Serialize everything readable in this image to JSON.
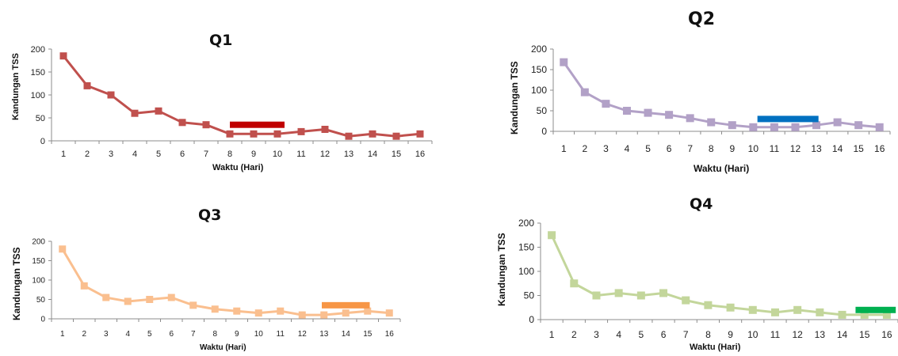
{
  "chart_data": [
    {
      "type": "line",
      "title": "Q1",
      "xlabel": "Waktu (Hari)",
      "ylabel": "Kandungan TSS",
      "categories": [
        "1",
        "2",
        "3",
        "4",
        "5",
        "6",
        "7",
        "8",
        "9",
        "10",
        "11",
        "12",
        "13",
        "14",
        "15",
        "16"
      ],
      "yticks": [
        "0",
        "50",
        "100",
        "150",
        "200"
      ],
      "ylim": [
        0,
        200
      ],
      "series": [
        {
          "values": [
            185,
            120,
            100,
            60,
            65,
            40,
            35,
            15,
            15,
            15,
            20,
            25,
            10,
            15,
            10,
            15
          ],
          "color": "#c0504d"
        }
      ],
      "marker_bar": {
        "from": 8,
        "to": 10.3,
        "value": 35,
        "color": "#c00000"
      },
      "grid": false
    },
    {
      "type": "line",
      "title": "Q2",
      "xlabel": "Waktu (Hari)",
      "ylabel": "Kandungan TSS",
      "categories": [
        "1",
        "2",
        "3",
        "4",
        "5",
        "6",
        "7",
        "8",
        "9",
        "10",
        "11",
        "12",
        "13",
        "14",
        "15",
        "16"
      ],
      "yticks": [
        "0",
        "50",
        "100",
        "150",
        "200"
      ],
      "ylim": [
        0,
        200
      ],
      "series": [
        {
          "values": [
            168,
            95,
            67,
            50,
            45,
            40,
            32,
            22,
            15,
            10,
            10,
            10,
            15,
            22,
            15,
            10
          ],
          "color": "#b2a1c7"
        }
      ],
      "marker_bar": {
        "from": 10.2,
        "to": 13.1,
        "value": 30,
        "color": "#0070c0"
      },
      "grid": false
    },
    {
      "type": "line",
      "title": "Q3",
      "xlabel": "Waktu (Hari)",
      "ylabel": "Kandungan TSS",
      "categories": [
        "1",
        "2",
        "3",
        "4",
        "5",
        "6",
        "7",
        "8",
        "9",
        "10",
        "11",
        "12",
        "13",
        "14",
        "15",
        "16"
      ],
      "yticks": [
        "0",
        "50",
        "100",
        "150",
        "200"
      ],
      "ylim": [
        0,
        200
      ],
      "series": [
        {
          "values": [
            180,
            85,
            55,
            45,
            50,
            55,
            35,
            25,
            20,
            15,
            20,
            10,
            10,
            15,
            20,
            15
          ],
          "color": "#fabf8f"
        }
      ],
      "marker_bar": {
        "from": 12.9,
        "to": 15.1,
        "value": 35,
        "color": "#f79646"
      },
      "grid": false
    },
    {
      "type": "line",
      "title": "Q4",
      "xlabel": "Waktu (Hari)",
      "ylabel": "Kandungan TSS",
      "categories": [
        "1",
        "2",
        "3",
        "4",
        "5",
        "6",
        "7",
        "8",
        "9",
        "10",
        "11",
        "12",
        "13",
        "14",
        "15",
        "16"
      ],
      "yticks": [
        "0",
        "50",
        "100",
        "150",
        "200"
      ],
      "ylim": [
        0,
        200
      ],
      "series": [
        {
          "values": [
            175,
            75,
            50,
            55,
            50,
            55,
            40,
            30,
            25,
            20,
            15,
            20,
            15,
            10,
            10,
            10
          ],
          "color": "#c3d69b"
        }
      ],
      "marker_bar": {
        "from": 14.6,
        "to": 16.4,
        "value": 20,
        "color": "#00b050"
      },
      "grid": false
    }
  ]
}
